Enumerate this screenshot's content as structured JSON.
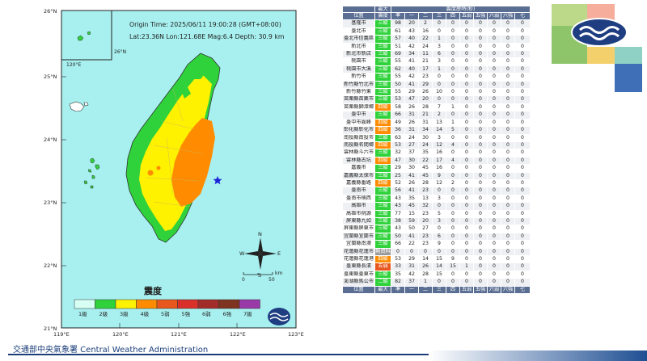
{
  "eq": {
    "origin_time": "Origin Time:  2025/06/11  19:00:28  (GMT+08:00)",
    "location": "Lat:23.36N  Lon:121.68E  Mag:6.4  Depth: 30.9 km"
  },
  "map": {
    "lat_labels": [
      "26°N",
      "25°N",
      "24°N",
      "23°N",
      "22°N",
      "21°N"
    ],
    "lon_labels": [
      "119°E",
      "120°E",
      "121°E",
      "122°E",
      "123°E"
    ],
    "inset_lat_label": "26°N",
    "inset_lon_label": "120°E",
    "north_label": "N",
    "south_label": "S",
    "west_label": "W",
    "east_label": "E",
    "scale_label": "km",
    "scale_ticks": [
      "0",
      "50"
    ],
    "legend_title": "震度",
    "legend": [
      {
        "label": "1級",
        "color": "#d7fff3"
      },
      {
        "label": "2級",
        "color": "#2fd23b"
      },
      {
        "label": "3級",
        "color": "#fff200"
      },
      {
        "label": "4級",
        "color": "#ff8c00"
      },
      {
        "label": "5弱",
        "color": "#e8581e"
      },
      {
        "label": "5強",
        "color": "#d9312a"
      },
      {
        "label": "6弱",
        "color": "#a22c2a"
      },
      {
        "label": "6強",
        "color": "#7e3420"
      },
      {
        "label": "7級",
        "color": "#9a3aa8"
      }
    ]
  },
  "table": {
    "header_top": [
      "位置",
      "最大",
      "震度歷時(秒)"
    ],
    "header_sub": [
      "位置",
      "震度",
      "準",
      "一",
      "二",
      "三",
      "四",
      "五弱",
      "五強",
      "六弱",
      "六強",
      "七"
    ],
    "footer": [
      "位置",
      "最大",
      "準",
      "一",
      "二",
      "三",
      "四",
      "五弱",
      "五強",
      "六弱",
      "六強",
      "七"
    ],
    "rows": [
      {
        "loc": "基隆市",
        "int": "三級",
        "c": "#2fd23b",
        "v": [
          "98",
          "20",
          "2",
          "0",
          "0",
          "0",
          "0",
          "0",
          "0",
          "0"
        ]
      },
      {
        "loc": "臺北市",
        "int": "三級",
        "c": "#2fd23b",
        "v": [
          "61",
          "43",
          "16",
          "0",
          "0",
          "0",
          "0",
          "0",
          "0",
          "0"
        ]
      },
      {
        "loc": "臺北市信義區",
        "int": "三級",
        "c": "#2fd23b",
        "v": [
          "57",
          "40",
          "22",
          "1",
          "0",
          "0",
          "0",
          "0",
          "0",
          "0"
        ]
      },
      {
        "loc": "新北市",
        "int": "三級",
        "c": "#2fd23b",
        "v": [
          "51",
          "42",
          "24",
          "3",
          "0",
          "0",
          "0",
          "0",
          "0",
          "0"
        ]
      },
      {
        "loc": "新北市新店",
        "int": "三級",
        "c": "#2fd23b",
        "v": [
          "69",
          "34",
          "11",
          "6",
          "0",
          "0",
          "0",
          "0",
          "0",
          "0"
        ]
      },
      {
        "loc": "桃園市",
        "int": "三級",
        "c": "#2fd23b",
        "v": [
          "55",
          "41",
          "21",
          "3",
          "0",
          "0",
          "0",
          "0",
          "0",
          "0"
        ]
      },
      {
        "loc": "桃園市大溪",
        "int": "三級",
        "c": "#2fd23b",
        "v": [
          "62",
          "40",
          "17",
          "1",
          "0",
          "0",
          "0",
          "0",
          "0",
          "0"
        ]
      },
      {
        "loc": "新竹市",
        "int": "三級",
        "c": "#2fd23b",
        "v": [
          "55",
          "42",
          "23",
          "0",
          "0",
          "0",
          "0",
          "0",
          "0",
          "0"
        ]
      },
      {
        "loc": "新竹縣竹北市",
        "int": "三級",
        "c": "#2fd23b",
        "v": [
          "50",
          "41",
          "29",
          "0",
          "0",
          "0",
          "0",
          "0",
          "0",
          "0"
        ]
      },
      {
        "loc": "新竹縣竹東",
        "int": "三級",
        "c": "#2fd23b",
        "v": [
          "55",
          "29",
          "26",
          "10",
          "0",
          "0",
          "0",
          "0",
          "0",
          "0"
        ]
      },
      {
        "loc": "苗栗縣苗栗市",
        "int": "三級",
        "c": "#2fd23b",
        "v": [
          "53",
          "47",
          "20",
          "0",
          "0",
          "0",
          "0",
          "0",
          "0",
          "0"
        ]
      },
      {
        "loc": "苗栗縣獅潭鄉",
        "int": "四級",
        "c": "#ff8c00",
        "v": [
          "58",
          "26",
          "28",
          "7",
          "1",
          "0",
          "0",
          "0",
          "0",
          "0"
        ]
      },
      {
        "loc": "臺中市",
        "int": "三級",
        "c": "#2fd23b",
        "v": [
          "66",
          "31",
          "21",
          "2",
          "0",
          "0",
          "0",
          "0",
          "0",
          "0"
        ]
      },
      {
        "loc": "臺中市霧峰",
        "int": "四級",
        "c": "#ff8c00",
        "v": [
          "49",
          "26",
          "31",
          "13",
          "1",
          "0",
          "0",
          "0",
          "0",
          "0"
        ]
      },
      {
        "loc": "彰化縣彰化市",
        "int": "四級",
        "c": "#ff8c00",
        "v": [
          "36",
          "31",
          "34",
          "14",
          "5",
          "0",
          "0",
          "0",
          "0",
          "0"
        ]
      },
      {
        "loc": "南投縣南投市",
        "int": "三級",
        "c": "#2fd23b",
        "v": [
          "63",
          "24",
          "30",
          "3",
          "0",
          "0",
          "0",
          "0",
          "0",
          "0"
        ]
      },
      {
        "loc": "南投縣名間鄉",
        "int": "四級",
        "c": "#ff8c00",
        "v": [
          "53",
          "27",
          "24",
          "12",
          "4",
          "0",
          "0",
          "0",
          "0",
          "0"
        ]
      },
      {
        "loc": "雲林縣斗六市",
        "int": "三級",
        "c": "#2fd23b",
        "v": [
          "32",
          "37",
          "35",
          "16",
          "0",
          "0",
          "0",
          "0",
          "0",
          "0"
        ]
      },
      {
        "loc": "雲林縣古坑",
        "int": "四級",
        "c": "#ff8c00",
        "v": [
          "47",
          "30",
          "22",
          "17",
          "4",
          "0",
          "0",
          "0",
          "0",
          "0"
        ]
      },
      {
        "loc": "嘉義市",
        "int": "三級",
        "c": "#2fd23b",
        "v": [
          "29",
          "30",
          "45",
          "16",
          "0",
          "0",
          "0",
          "0",
          "0",
          "0"
        ]
      },
      {
        "loc": "嘉義縣太保市",
        "int": "三級",
        "c": "#2fd23b",
        "v": [
          "25",
          "41",
          "45",
          "9",
          "0",
          "0",
          "0",
          "0",
          "0",
          "0"
        ]
      },
      {
        "loc": "嘉義縣番路",
        "int": "四級",
        "c": "#ff8c00",
        "v": [
          "52",
          "26",
          "28",
          "12",
          "2",
          "0",
          "0",
          "0",
          "0",
          "0"
        ]
      },
      {
        "loc": "臺南市",
        "int": "三級",
        "c": "#2fd23b",
        "v": [
          "56",
          "41",
          "23",
          "0",
          "0",
          "0",
          "0",
          "0",
          "0",
          "0"
        ]
      },
      {
        "loc": "臺南市楠西",
        "int": "三級",
        "c": "#2fd23b",
        "v": [
          "43",
          "35",
          "13",
          "3",
          "0",
          "0",
          "0",
          "0",
          "0",
          "0"
        ]
      },
      {
        "loc": "高雄市",
        "int": "三級",
        "c": "#2fd23b",
        "v": [
          "43",
          "45",
          "32",
          "0",
          "0",
          "0",
          "0",
          "0",
          "0",
          "0"
        ]
      },
      {
        "loc": "高雄市桃源",
        "int": "三級",
        "c": "#2fd23b",
        "v": [
          "77",
          "15",
          "23",
          "5",
          "0",
          "0",
          "0",
          "0",
          "0",
          "0"
        ]
      },
      {
        "loc": "屏東縣九如",
        "int": "三級",
        "c": "#2fd23b",
        "v": [
          "38",
          "59",
          "20",
          "3",
          "0",
          "0",
          "0",
          "0",
          "0",
          "0"
        ]
      },
      {
        "loc": "屏東縣屏東市",
        "int": "三級",
        "c": "#2fd23b",
        "v": [
          "43",
          "50",
          "27",
          "0",
          "0",
          "0",
          "0",
          "0",
          "0",
          "0"
        ]
      },
      {
        "loc": "宜蘭縣宜蘭市",
        "int": "三級",
        "c": "#2fd23b",
        "v": [
          "50",
          "41",
          "23",
          "6",
          "0",
          "0",
          "0",
          "0",
          "0",
          "0"
        ]
      },
      {
        "loc": "宜蘭縣南澳",
        "int": "三級",
        "c": "#2fd23b",
        "v": [
          "66",
          "22",
          "23",
          "9",
          "0",
          "0",
          "0",
          "0",
          "0",
          "0"
        ]
      },
      {
        "loc": "花蓮縣花蓮市",
        "int": "無資料",
        "c": "#999999",
        "v": [
          "0",
          "0",
          "0",
          "0",
          "0",
          "0",
          "0",
          "0",
          "0",
          "0"
        ]
      },
      {
        "loc": "花蓮縣花蓮港",
        "int": "四級",
        "c": "#ff8c00",
        "v": [
          "53",
          "29",
          "14",
          "15",
          "9",
          "0",
          "0",
          "0",
          "0",
          "0"
        ]
      },
      {
        "loc": "臺東縣長濱",
        "int": "五弱",
        "c": "#e8581e",
        "v": [
          "33",
          "31",
          "26",
          "14",
          "15",
          "1",
          "0",
          "0",
          "0",
          "0"
        ]
      },
      {
        "loc": "臺東縣臺東市",
        "int": "三級",
        "c": "#2fd23b",
        "v": [
          "35",
          "42",
          "28",
          "15",
          "0",
          "0",
          "0",
          "0",
          "0",
          "0"
        ]
      },
      {
        "loc": "澎湖縣馬公市",
        "int": "二級",
        "c": "#2fd23b",
        "v": [
          "82",
          "37",
          "1",
          "0",
          "0",
          "0",
          "0",
          "0",
          "0",
          "0"
        ]
      }
    ]
  },
  "footer": {
    "text": "交通部中央氣象署 Central Weather Administration"
  }
}
